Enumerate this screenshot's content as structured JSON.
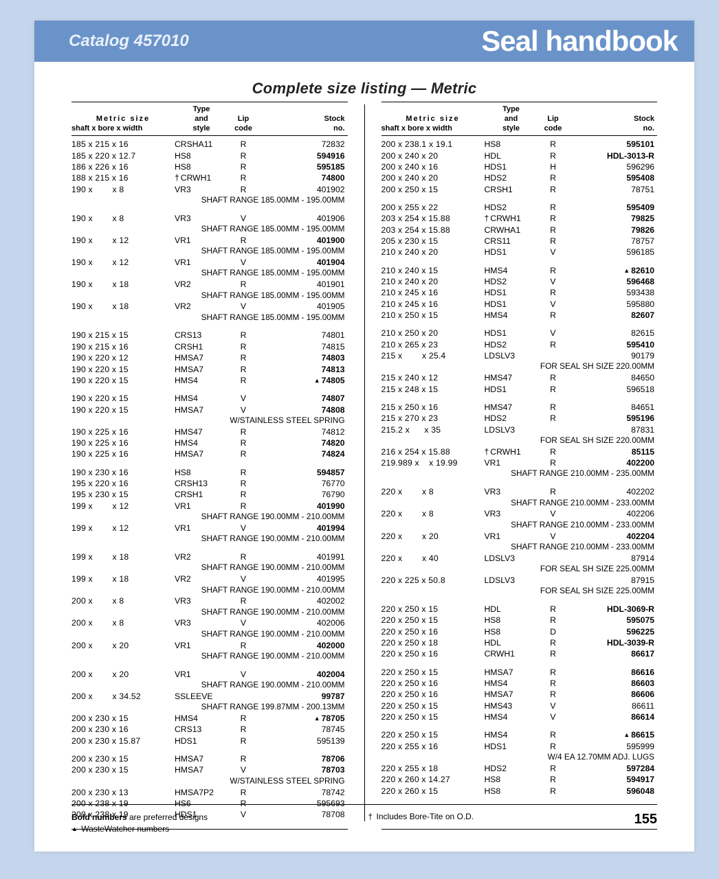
{
  "header": {
    "catalog": "Catalog 457010",
    "handbook": "Seal handbook"
  },
  "subtitle": "Complete size listing — Metric",
  "columns_header": {
    "size_label": "Metric size",
    "size_sub": "shaft x bore x width",
    "type1": "Type",
    "type2": "and",
    "type3": "style",
    "lip1": "Lip",
    "lip2": "code",
    "stock1": "Stock",
    "stock2": "no."
  },
  "left": [
    {
      "t": "row",
      "size": "185 x 215 x 16",
      "type": "CRSHA11",
      "lip": "R",
      "stock": "72832"
    },
    {
      "t": "row",
      "size": "185 x 220 x 12.7",
      "type": "HS8",
      "lip": "R",
      "stock": "594916",
      "bold": true
    },
    {
      "t": "row",
      "size": "186 x 226 x 16",
      "type": "HS8",
      "lip": "R",
      "stock": "595185",
      "bold": true
    },
    {
      "t": "row",
      "size": "188 x 215 x 16",
      "type": "CRWH1",
      "dag": true,
      "lip": "R",
      "stock": "74800",
      "bold": true
    },
    {
      "t": "row",
      "size": "190 x        x 8",
      "type": "VR3",
      "lip": "R",
      "stock": "401902"
    },
    {
      "t": "note",
      "text": "SHAFT RANGE 185.00MM - 195.00MM"
    },
    {
      "t": "gap"
    },
    {
      "t": "row",
      "size": "190 x        x 8",
      "type": "VR3",
      "lip": "V",
      "stock": "401906"
    },
    {
      "t": "note",
      "text": "SHAFT RANGE 185.00MM - 195.00MM"
    },
    {
      "t": "row",
      "size": "190 x        x 12",
      "type": "VR1",
      "lip": "R",
      "stock": "401900",
      "bold": true
    },
    {
      "t": "note",
      "text": "SHAFT RANGE 185.00MM - 195.00MM"
    },
    {
      "t": "row",
      "size": "190 x        x 12",
      "type": "VR1",
      "lip": "V",
      "stock": "401904",
      "bold": true
    },
    {
      "t": "note",
      "text": "SHAFT RANGE 185.00MM - 195.00MM"
    },
    {
      "t": "row",
      "size": "190 x        x 18",
      "type": "VR2",
      "lip": "R",
      "stock": "401901"
    },
    {
      "t": "note",
      "text": "SHAFT RANGE 185.00MM - 195.00MM"
    },
    {
      "t": "row",
      "size": "190 x        x 18",
      "type": "VR2",
      "lip": "V",
      "stock": "401905"
    },
    {
      "t": "note",
      "text": "SHAFT RANGE 185.00MM - 195.00MM"
    },
    {
      "t": "gap"
    },
    {
      "t": "row",
      "size": "190 x 215 x 15",
      "type": "CRS13",
      "lip": "R",
      "stock": "74801"
    },
    {
      "t": "row",
      "size": "190 x 215 x 16",
      "type": "CRSH1",
      "lip": "R",
      "stock": "74815"
    },
    {
      "t": "row",
      "size": "190 x 220 x 12",
      "type": "HMSA7",
      "lip": "R",
      "stock": "74803",
      "bold": true
    },
    {
      "t": "row",
      "size": "190 x 220 x 15",
      "type": "HMSA7",
      "lip": "R",
      "stock": "74813",
      "bold": true
    },
    {
      "t": "row",
      "size": "190 x 220 x 15",
      "type": "HMS4",
      "lip": "R",
      "stock": "74805",
      "bold": true,
      "tri": true
    },
    {
      "t": "gap"
    },
    {
      "t": "row",
      "size": "190 x 220 x 15",
      "type": "HMS4",
      "lip": "V",
      "stock": "74807",
      "bold": true
    },
    {
      "t": "row",
      "size": "190 x 220 x 15",
      "type": "HMSA7",
      "lip": "V",
      "stock": "74808",
      "bold": true
    },
    {
      "t": "note",
      "text": "W/STAINLESS STEEL SPRING"
    },
    {
      "t": "row",
      "size": "190 x 225 x 16",
      "type": "HMS47",
      "lip": "R",
      "stock": "74812"
    },
    {
      "t": "row",
      "size": "190 x 225 x 16",
      "type": "HMS4",
      "lip": "R",
      "stock": "74820",
      "bold": true
    },
    {
      "t": "row",
      "size": "190 x 225 x 16",
      "type": "HMSA7",
      "lip": "R",
      "stock": "74824",
      "bold": true
    },
    {
      "t": "gap"
    },
    {
      "t": "row",
      "size": "190 x 230 x 16",
      "type": "HS8",
      "lip": "R",
      "stock": "594857",
      "bold": true
    },
    {
      "t": "row",
      "size": "195 x 220 x 16",
      "type": "CRSH13",
      "lip": "R",
      "stock": "76770"
    },
    {
      "t": "row",
      "size": "195 x 230 x 15",
      "type": "CRSH1",
      "lip": "R",
      "stock": "76790"
    },
    {
      "t": "row",
      "size": "199 x        x 12",
      "type": "VR1",
      "lip": "R",
      "stock": "401990",
      "bold": true
    },
    {
      "t": "note",
      "text": "SHAFT RANGE 190.00MM - 210.00MM"
    },
    {
      "t": "row",
      "size": "199 x        x 12",
      "type": "VR1",
      "lip": "V",
      "stock": "401994",
      "bold": true
    },
    {
      "t": "note",
      "text": "SHAFT RANGE 190.00MM - 210.00MM"
    },
    {
      "t": "gap"
    },
    {
      "t": "row",
      "size": "199 x        x 18",
      "type": "VR2",
      "lip": "R",
      "stock": "401991"
    },
    {
      "t": "note",
      "text": "SHAFT RANGE 190.00MM - 210.00MM"
    },
    {
      "t": "row",
      "size": "199 x        x 18",
      "type": "VR2",
      "lip": "V",
      "stock": "401995"
    },
    {
      "t": "note",
      "text": "SHAFT RANGE 190.00MM - 210.00MM"
    },
    {
      "t": "row",
      "size": "200 x        x 8",
      "type": "VR3",
      "lip": "R",
      "stock": "402002"
    },
    {
      "t": "note",
      "text": "SHAFT RANGE 190.00MM - 210.00MM"
    },
    {
      "t": "row",
      "size": "200 x        x 8",
      "type": "VR3",
      "lip": "V",
      "stock": "402006"
    },
    {
      "t": "note",
      "text": "SHAFT RANGE 190.00MM - 210.00MM"
    },
    {
      "t": "row",
      "size": "200 x        x 20",
      "type": "VR1",
      "lip": "R",
      "stock": "402000",
      "bold": true
    },
    {
      "t": "note",
      "text": "SHAFT RANGE 190.00MM - 210.00MM"
    },
    {
      "t": "gap"
    },
    {
      "t": "row",
      "size": "200 x        x 20",
      "type": "VR1",
      "lip": "V",
      "stock": "402004",
      "bold": true
    },
    {
      "t": "note",
      "text": "SHAFT RANGE 190.00MM - 210.00MM"
    },
    {
      "t": "row",
      "size": "200 x        x 34.52",
      "type": "SSLEEVE",
      "lip": "",
      "stock": "99787",
      "bold": true
    },
    {
      "t": "note",
      "text": "SHAFT RANGE 199.87MM - 200.13MM"
    },
    {
      "t": "row",
      "size": "200 x 230 x 15",
      "type": "HMS4",
      "lip": "R",
      "stock": "78705",
      "bold": true,
      "tri": true
    },
    {
      "t": "row",
      "size": "200 x 230 x 16",
      "type": "CRS13",
      "lip": "R",
      "stock": "78745"
    },
    {
      "t": "row",
      "size": "200 x 230 x 15.87",
      "type": "HDS1",
      "lip": "R",
      "stock": "595139"
    },
    {
      "t": "gap"
    },
    {
      "t": "row",
      "size": "200 x 230 x 15",
      "type": "HMSA7",
      "lip": "R",
      "stock": "78706",
      "bold": true
    },
    {
      "t": "row",
      "size": "200 x 230 x 15",
      "type": "HMSA7",
      "lip": "V",
      "stock": "78703",
      "bold": true
    },
    {
      "t": "note",
      "text": "W/STAINLESS STEEL SPRING"
    },
    {
      "t": "row",
      "size": "200 x 230 x 13",
      "type": "HMSA7P2",
      "lip": "R",
      "stock": "78742"
    },
    {
      "t": "row",
      "size": "200 x 238 x 19",
      "type": "HS6",
      "lip": "R",
      "stock": "595693"
    },
    {
      "t": "row",
      "size": "200 x 238 x 19",
      "type": "HDS1",
      "lip": "V",
      "stock": "78708"
    }
  ],
  "right": [
    {
      "t": "row",
      "size": "200 x 238.1 x 19.1",
      "type": "HS8",
      "lip": "R",
      "stock": "595101",
      "bold": true
    },
    {
      "t": "row",
      "size": "200 x 240 x 20",
      "type": "HDL",
      "lip": "R",
      "stock": "HDL-3013-R",
      "bold": true
    },
    {
      "t": "row",
      "size": "200 x 240 x 16",
      "type": "HDS1",
      "lip": "H",
      "stock": "596296"
    },
    {
      "t": "row",
      "size": "200 x 240 x 20",
      "type": "HDS2",
      "lip": "R",
      "stock": "595408",
      "bold": true
    },
    {
      "t": "row",
      "size": "200 x 250 x 15",
      "type": "CRSH1",
      "lip": "R",
      "stock": "78751"
    },
    {
      "t": "gap"
    },
    {
      "t": "row",
      "size": "200 x 255 x 22",
      "type": "HDS2",
      "lip": "R",
      "stock": "595409",
      "bold": true
    },
    {
      "t": "row",
      "size": "203 x 254 x 15.88",
      "type": "CRWH1",
      "dag": true,
      "lip": "R",
      "stock": "79825",
      "bold": true
    },
    {
      "t": "row",
      "size": "203 x 254 x 15.88",
      "type": "CRWHA1",
      "lip": "R",
      "stock": "79826",
      "bold": true
    },
    {
      "t": "row",
      "size": "205 x 230 x 15",
      "type": "CRS11",
      "lip": "R",
      "stock": "78757"
    },
    {
      "t": "row",
      "size": "210 x 240 x 20",
      "type": "HDS1",
      "lip": "V",
      "stock": "596185"
    },
    {
      "t": "gap"
    },
    {
      "t": "row",
      "size": "210 x 240 x 15",
      "type": "HMS4",
      "lip": "R",
      "stock": "82610",
      "bold": true,
      "tri": true
    },
    {
      "t": "row",
      "size": "210 x 240 x 20",
      "type": "HDS2",
      "lip": "V",
      "stock": "596468",
      "bold": true
    },
    {
      "t": "row",
      "size": "210 x 245 x 16",
      "type": "HDS1",
      "lip": "R",
      "stock": "593438"
    },
    {
      "t": "row",
      "size": "210 x 245 x 16",
      "type": "HDS1",
      "lip": "V",
      "stock": "595880"
    },
    {
      "t": "row",
      "size": "210 x 250 x 15",
      "type": "HMS4",
      "lip": "R",
      "stock": "82607",
      "bold": true
    },
    {
      "t": "gap"
    },
    {
      "t": "row",
      "size": "210 x 250 x 20",
      "type": "HDS1",
      "lip": "V",
      "stock": "82615"
    },
    {
      "t": "row",
      "size": "210 x 265 x 23",
      "type": "HDS2",
      "lip": "R",
      "stock": "595410",
      "bold": true
    },
    {
      "t": "row",
      "size": "215 x        x 25.4",
      "type": "LDSLV3",
      "lip": "",
      "stock": "90179"
    },
    {
      "t": "note",
      "text": "FOR SEAL SH SIZE 220.00MM"
    },
    {
      "t": "row",
      "size": "215 x 240 x 12",
      "type": "HMS47",
      "lip": "R",
      "stock": "84650"
    },
    {
      "t": "row",
      "size": "215 x 248 x 15",
      "type": "HDS1",
      "lip": "R",
      "stock": "596518"
    },
    {
      "t": "gap"
    },
    {
      "t": "row",
      "size": "215 x 250 x 16",
      "type": "HMS47",
      "lip": "R",
      "stock": "84651"
    },
    {
      "t": "row",
      "size": "215 x 270 x 23",
      "type": "HDS2",
      "lip": "R",
      "stock": "595196",
      "bold": true
    },
    {
      "t": "row",
      "size": "215.2 x      x 35",
      "type": "LDSLV3",
      "lip": "",
      "stock": "87831"
    },
    {
      "t": "note",
      "text": "FOR SEAL SH SIZE 220.00MM"
    },
    {
      "t": "row",
      "size": "216 x 254 x 15.88",
      "type": "CRWH1",
      "dag": true,
      "lip": "R",
      "stock": "85115",
      "bold": true
    },
    {
      "t": "row",
      "size": "219.989 x    x 19.99",
      "type": "VR1",
      "lip": "R",
      "stock": "402200",
      "bold": true
    },
    {
      "t": "note",
      "text": "SHAFT RANGE 210.00MM - 235.00MM"
    },
    {
      "t": "gap"
    },
    {
      "t": "row",
      "size": "220 x        x 8",
      "type": "VR3",
      "lip": "R",
      "stock": "402202"
    },
    {
      "t": "note",
      "text": "SHAFT RANGE 210.00MM - 233.00MM"
    },
    {
      "t": "row",
      "size": "220 x        x 8",
      "type": "VR3",
      "lip": "V",
      "stock": "402206"
    },
    {
      "t": "note",
      "text": "SHAFT RANGE 210.00MM - 233.00MM"
    },
    {
      "t": "row",
      "size": "220 x        x 20",
      "type": "VR1",
      "lip": "V",
      "stock": "402204",
      "bold": true
    },
    {
      "t": "note",
      "text": "SHAFT RANGE 210.00MM - 233.00MM"
    },
    {
      "t": "row",
      "size": "220 x        x 40",
      "type": "LDSLV3",
      "lip": "",
      "stock": "87914"
    },
    {
      "t": "note",
      "text": "FOR SEAL SH SIZE 225.00MM"
    },
    {
      "t": "row",
      "size": "220 x 225 x 50.8",
      "type": "LDSLV3",
      "lip": "",
      "stock": "87915"
    },
    {
      "t": "note",
      "text": "FOR SEAL SH SIZE 225.00MM"
    },
    {
      "t": "gap"
    },
    {
      "t": "row",
      "size": "220 x 250 x 15",
      "type": "HDL",
      "lip": "R",
      "stock": "HDL-3069-R",
      "bold": true
    },
    {
      "t": "row",
      "size": "220 x 250 x 15",
      "type": "HS8",
      "lip": "R",
      "stock": "595075",
      "bold": true
    },
    {
      "t": "row",
      "size": "220 x 250 x 16",
      "type": "HS8",
      "lip": "D",
      "stock": "596225",
      "bold": true
    },
    {
      "t": "row",
      "size": "220 x 250 x 18",
      "type": "HDL",
      "lip": "R",
      "stock": "HDL-3039-R",
      "bold": true
    },
    {
      "t": "row",
      "size": "220 x 250 x 16",
      "type": "CRWH1",
      "lip": "R",
      "stock": "86617",
      "bold": true
    },
    {
      "t": "gap"
    },
    {
      "t": "row",
      "size": "220 x 250 x 15",
      "type": "HMSA7",
      "lip": "R",
      "stock": "86616",
      "bold": true
    },
    {
      "t": "row",
      "size": "220 x 250 x 16",
      "type": "HMS4",
      "lip": "R",
      "stock": "86603",
      "bold": true
    },
    {
      "t": "row",
      "size": "220 x 250 x 16",
      "type": "HMSA7",
      "lip": "R",
      "stock": "86606",
      "bold": true
    },
    {
      "t": "row",
      "size": "220 x 250 x 15",
      "type": "HMS43",
      "lip": "V",
      "stock": "86611"
    },
    {
      "t": "row",
      "size": "220 x 250 x 15",
      "type": "HMS4",
      "lip": "V",
      "stock": "86614",
      "bold": true
    },
    {
      "t": "gap"
    },
    {
      "t": "row",
      "size": "220 x 250 x 15",
      "type": "HMS4",
      "lip": "R",
      "stock": "86615",
      "bold": true,
      "tri": true
    },
    {
      "t": "row",
      "size": "220 x 255 x 16",
      "type": "HDS1",
      "lip": "R",
      "stock": "595999"
    },
    {
      "t": "note",
      "text": "W/4 EA 12.70MM ADJ. LUGS"
    },
    {
      "t": "row",
      "size": "220 x 255 x 18",
      "type": "HDS2",
      "lip": "R",
      "stock": "597284",
      "bold": true
    },
    {
      "t": "row",
      "size": "220 x 260 x 14.27",
      "type": "HS8",
      "lip": "R",
      "stock": "594917",
      "bold": true
    },
    {
      "t": "row",
      "size": "220 x 260 x 15",
      "type": "HS8",
      "lip": "R",
      "stock": "596048",
      "bold": true
    }
  ],
  "footer": {
    "left1a": "Bold numbers",
    "left1b": " are preferred designs",
    "left2": " WasteWatcher numbers",
    "right": " Includes Bore-Tite on O.D.",
    "page": "155"
  }
}
